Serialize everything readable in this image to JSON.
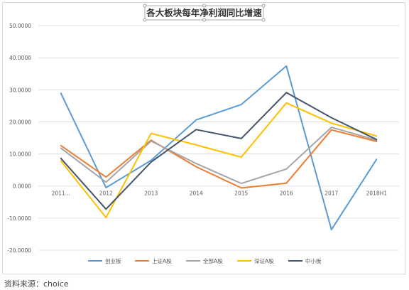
{
  "chart_data": {
    "type": "line",
    "title": "各大板块每年净利润同比增速",
    "categories": [
      "2011...",
      "2012",
      "2013",
      "2014",
      "2015",
      "2016",
      "2017",
      "2018H1"
    ],
    "ylim": [
      -20,
      50
    ],
    "yticks": [
      "50.0000",
      "40.0000",
      "30.0000",
      "20.0000",
      "10.0000",
      "0.0000",
      "-10.0000",
      "-20.0000"
    ],
    "grid": true,
    "legend_position": "bottom",
    "series": [
      {
        "name": "创业板",
        "color": "#5b9bd5",
        "values": [
          28.9,
          -0.5,
          8.0,
          20.6,
          25.4,
          37.4,
          -13.6,
          8.3
        ]
      },
      {
        "name": "上证A股",
        "color": "#ed7d31",
        "values": [
          12.6,
          2.8,
          14.3,
          6.0,
          -0.6,
          0.9,
          17.5,
          13.9
        ]
      },
      {
        "name": "全部A股",
        "color": "#a5a5a5",
        "values": [
          11.8,
          1.2,
          14.0,
          7.0,
          0.8,
          5.3,
          18.3,
          14.3
        ]
      },
      {
        "name": "深证A股",
        "color": "#ffc000",
        "values": [
          7.8,
          -9.8,
          16.4,
          12.8,
          9.0,
          25.9,
          19.6,
          15.6
        ]
      },
      {
        "name": "中小板",
        "color": "#44546a",
        "values": [
          8.6,
          -7.2,
          7.5,
          17.6,
          14.8,
          29.1,
          21.3,
          14.5
        ]
      }
    ]
  },
  "source_text": "资料来源：choice"
}
